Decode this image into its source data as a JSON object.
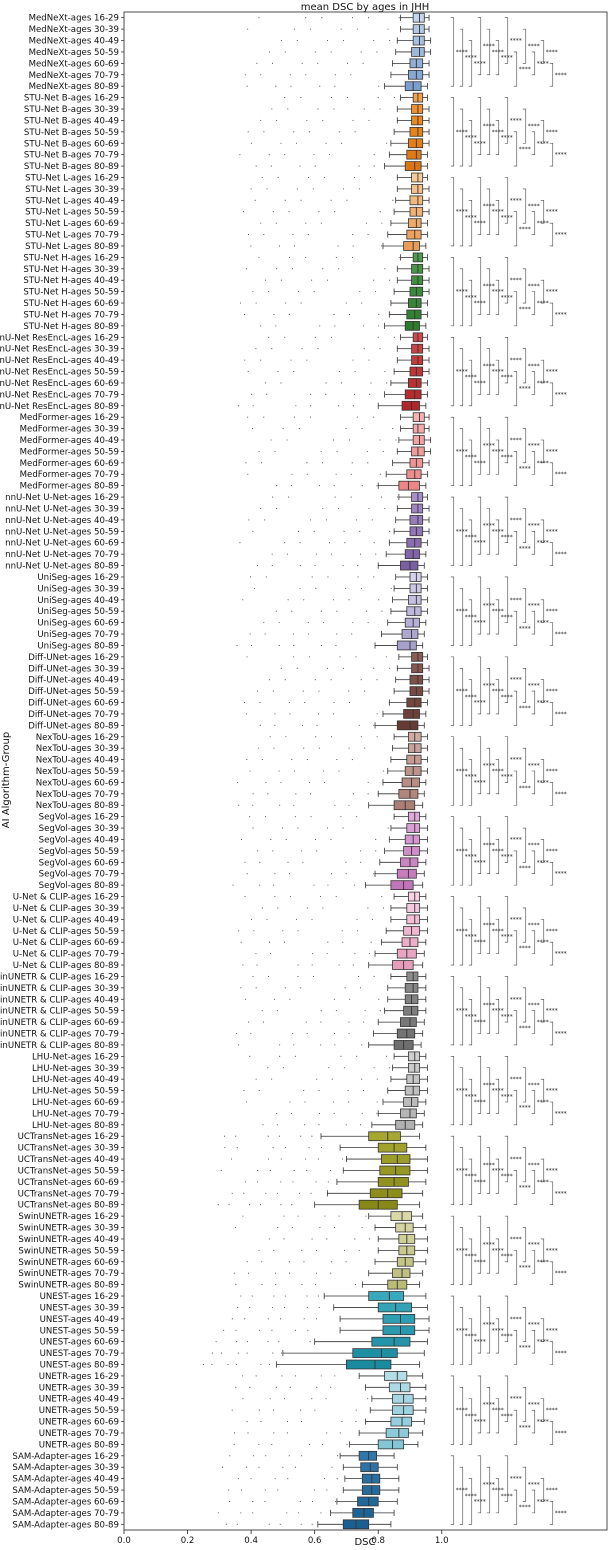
{
  "chart_data": {
    "type": "box",
    "orientation": "horizontal",
    "title": "mean DSC by ages in JHH",
    "xlabel": "DSC",
    "ylabel": "AI Algorithm-Group",
    "xlim": [
      0.0,
      1.0
    ],
    "xticks": [
      "0.0",
      "0.2",
      "0.4",
      "0.6",
      "0.8",
      "1.0"
    ],
    "age_groups": [
      "16-29",
      "30-39",
      "40-49",
      "50-59",
      "60-69",
      "70-79",
      "80-89"
    ],
    "significance_marker": "****",
    "algorithms": [
      {
        "name": "MedNeXt",
        "colors": [
          "#c6d6ec",
          "#b3c8e3",
          "#a8c0df",
          "#9db8db",
          "#92b0d6",
          "#87a8d2",
          "#7c9fcd"
        ],
        "median": [
          0.93,
          0.93,
          0.93,
          0.93,
          0.92,
          0.92,
          0.91
        ],
        "q1": [
          0.91,
          0.91,
          0.91,
          0.905,
          0.9,
          0.895,
          0.885
        ],
        "q3": [
          0.945,
          0.945,
          0.945,
          0.945,
          0.94,
          0.94,
          0.935
        ],
        "whisker_low": [
          0.87,
          0.87,
          0.86,
          0.855,
          0.845,
          0.84,
          0.82
        ],
        "whisker_high": [
          0.96,
          0.96,
          0.965,
          0.965,
          0.96,
          0.96,
          0.955
        ]
      },
      {
        "name": "STU-Net B",
        "colors": [
          "#f3a24e",
          "#ef8f2e",
          "#eb8a22",
          "#e8841c",
          "#e47f18",
          "#e07a14",
          "#dc7510"
        ],
        "median": [
          0.925,
          0.925,
          0.925,
          0.925,
          0.92,
          0.92,
          0.915
        ],
        "q1": [
          0.91,
          0.905,
          0.905,
          0.9,
          0.895,
          0.89,
          0.885
        ],
        "q3": [
          0.94,
          0.94,
          0.94,
          0.94,
          0.94,
          0.935,
          0.935
        ],
        "whisker_low": [
          0.87,
          0.86,
          0.86,
          0.85,
          0.84,
          0.835,
          0.82
        ],
        "whisker_high": [
          0.955,
          0.96,
          0.96,
          0.96,
          0.96,
          0.955,
          0.955
        ]
      },
      {
        "name": "STU-Net L",
        "colors": [
          "#f7cb97",
          "#f5c089",
          "#f3b87e",
          "#f1b174",
          "#efaa6a",
          "#eda260",
          "#eb9b56"
        ],
        "median": [
          0.925,
          0.925,
          0.925,
          0.92,
          0.92,
          0.915,
          0.91
        ],
        "q1": [
          0.905,
          0.905,
          0.9,
          0.9,
          0.895,
          0.89,
          0.88
        ],
        "q3": [
          0.94,
          0.94,
          0.94,
          0.94,
          0.935,
          0.935,
          0.93
        ],
        "whisker_low": [
          0.86,
          0.86,
          0.855,
          0.85,
          0.84,
          0.83,
          0.815
        ],
        "whisker_high": [
          0.955,
          0.96,
          0.96,
          0.96,
          0.955,
          0.955,
          0.95
        ]
      },
      {
        "name": "STU-Net H",
        "colors": [
          "#4f9a4f",
          "#489548",
          "#418f41",
          "#3c8a3c",
          "#378537",
          "#328032",
          "#2d7b2d"
        ],
        "median": [
          0.925,
          0.925,
          0.925,
          0.92,
          0.92,
          0.915,
          0.91
        ],
        "q1": [
          0.91,
          0.905,
          0.905,
          0.9,
          0.895,
          0.89,
          0.885
        ],
        "q3": [
          0.94,
          0.94,
          0.94,
          0.94,
          0.935,
          0.935,
          0.93
        ],
        "whisker_low": [
          0.87,
          0.86,
          0.86,
          0.85,
          0.84,
          0.835,
          0.82
        ],
        "whisker_high": [
          0.955,
          0.96,
          0.96,
          0.96,
          0.955,
          0.955,
          0.95
        ]
      },
      {
        "name": "nnU-Net ResEncL",
        "colors": [
          "#cf4a4d",
          "#c94245",
          "#c43b3e",
          "#bf3538",
          "#ba3033",
          "#b52b2e",
          "#b02629"
        ],
        "median": [
          0.925,
          0.925,
          0.925,
          0.92,
          0.92,
          0.915,
          0.905
        ],
        "q1": [
          0.91,
          0.905,
          0.905,
          0.9,
          0.895,
          0.885,
          0.875
        ],
        "q3": [
          0.94,
          0.94,
          0.94,
          0.94,
          0.935,
          0.935,
          0.93
        ],
        "whisker_low": [
          0.87,
          0.86,
          0.86,
          0.85,
          0.84,
          0.82,
          0.8
        ],
        "whisker_high": [
          0.955,
          0.96,
          0.96,
          0.96,
          0.955,
          0.955,
          0.95
        ]
      },
      {
        "name": "MedFormer",
        "colors": [
          "#f7b3b3",
          "#f5aaaa",
          "#f3a3a3",
          "#f19c9c",
          "#ef9595",
          "#ed8e8e",
          "#eb8787"
        ],
        "median": [
          0.93,
          0.925,
          0.93,
          0.925,
          0.92,
          0.915,
          0.895
        ],
        "q1": [
          0.91,
          0.91,
          0.91,
          0.905,
          0.9,
          0.89,
          0.865
        ],
        "q3": [
          0.945,
          0.945,
          0.945,
          0.945,
          0.94,
          0.935,
          0.93
        ],
        "whisker_low": [
          0.87,
          0.87,
          0.865,
          0.86,
          0.845,
          0.825,
          0.8
        ],
        "whisker_high": [
          0.96,
          0.96,
          0.965,
          0.965,
          0.96,
          0.955,
          0.95
        ]
      },
      {
        "name": "nnU-Net U-Net",
        "colors": [
          "#a78fc9",
          "#9f86c3",
          "#977dbd",
          "#9075b7",
          "#896db1",
          "#8266ab",
          "#7b5fa5"
        ],
        "median": [
          0.925,
          0.925,
          0.925,
          0.92,
          0.915,
          0.91,
          0.9
        ],
        "q1": [
          0.905,
          0.905,
          0.9,
          0.9,
          0.89,
          0.885,
          0.87
        ],
        "q3": [
          0.94,
          0.94,
          0.94,
          0.94,
          0.935,
          0.93,
          0.925
        ],
        "whisker_low": [
          0.865,
          0.86,
          0.855,
          0.85,
          0.835,
          0.825,
          0.8
        ],
        "whisker_high": [
          0.955,
          0.96,
          0.96,
          0.96,
          0.955,
          0.95,
          0.945
        ]
      },
      {
        "name": "UniSeg",
        "colors": [
          "#d6d1ea",
          "#cec8e5",
          "#c6c0e0",
          "#beb8db",
          "#b6b0d6",
          "#aea8d1",
          "#a6a0cc"
        ],
        "median": [
          0.92,
          0.92,
          0.92,
          0.915,
          0.91,
          0.905,
          0.9
        ],
        "q1": [
          0.9,
          0.9,
          0.895,
          0.89,
          0.885,
          0.875,
          0.86
        ],
        "q3": [
          0.935,
          0.935,
          0.935,
          0.935,
          0.93,
          0.925,
          0.92
        ],
        "whisker_low": [
          0.855,
          0.85,
          0.845,
          0.84,
          0.83,
          0.81,
          0.79
        ],
        "whisker_high": [
          0.955,
          0.955,
          0.955,
          0.955,
          0.95,
          0.945,
          0.94
        ]
      },
      {
        "name": "Diff-UNet",
        "colors": [
          "#8a5d56",
          "#84564f",
          "#7e5049",
          "#784a43",
          "#72453e",
          "#6c4039",
          "#663b34"
        ],
        "median": [
          0.925,
          0.925,
          0.925,
          0.92,
          0.915,
          0.91,
          0.9
        ],
        "q1": [
          0.905,
          0.905,
          0.9,
          0.9,
          0.89,
          0.88,
          0.86
        ],
        "q3": [
          0.94,
          0.94,
          0.94,
          0.94,
          0.935,
          0.93,
          0.925
        ],
        "whisker_low": [
          0.865,
          0.86,
          0.855,
          0.85,
          0.835,
          0.815,
          0.79
        ],
        "whisker_high": [
          0.955,
          0.96,
          0.96,
          0.96,
          0.955,
          0.95,
          0.945
        ]
      },
      {
        "name": "NexToU",
        "colors": [
          "#d0aba4",
          "#c9a39b",
          "#c39b93",
          "#bd948b",
          "#b78d84",
          "#b1867d",
          "#ab7f76"
        ],
        "median": [
          0.915,
          0.915,
          0.915,
          0.91,
          0.905,
          0.9,
          0.885
        ],
        "q1": [
          0.895,
          0.895,
          0.89,
          0.885,
          0.875,
          0.865,
          0.85
        ],
        "q3": [
          0.935,
          0.935,
          0.935,
          0.935,
          0.93,
          0.925,
          0.915
        ],
        "whisker_low": [
          0.85,
          0.845,
          0.84,
          0.83,
          0.815,
          0.8,
          0.77
        ],
        "whisker_high": [
          0.955,
          0.955,
          0.955,
          0.955,
          0.95,
          0.945,
          0.94
        ]
      },
      {
        "name": "SegVol",
        "colors": [
          "#e0a9dc",
          "#da9fd5",
          "#d596cf",
          "#d08dc9",
          "#cb85c3",
          "#c67cbd",
          "#c174b7"
        ],
        "median": [
          0.915,
          0.915,
          0.91,
          0.905,
          0.9,
          0.895,
          0.88
        ],
        "q1": [
          0.895,
          0.89,
          0.885,
          0.88,
          0.87,
          0.86,
          0.84
        ],
        "q3": [
          0.93,
          0.93,
          0.93,
          0.93,
          0.925,
          0.92,
          0.91
        ],
        "whisker_low": [
          0.85,
          0.84,
          0.835,
          0.82,
          0.805,
          0.79,
          0.76
        ],
        "whisker_high": [
          0.95,
          0.955,
          0.955,
          0.955,
          0.95,
          0.945,
          0.94
        ]
      },
      {
        "name": "U-Net & CLIP",
        "colors": [
          "#f8d2e4",
          "#f5c9dd",
          "#f2c0d6",
          "#efb7cf",
          "#ecaec8",
          "#e9a5c1",
          "#e69cba"
        ],
        "median": [
          0.915,
          0.915,
          0.915,
          0.905,
          0.9,
          0.89,
          0.88
        ],
        "q1": [
          0.895,
          0.89,
          0.89,
          0.88,
          0.875,
          0.86,
          0.845
        ],
        "q3": [
          0.93,
          0.93,
          0.93,
          0.93,
          0.925,
          0.92,
          0.91
        ],
        "whisker_low": [
          0.85,
          0.84,
          0.84,
          0.825,
          0.81,
          0.79,
          0.77
        ],
        "whisker_high": [
          0.95,
          0.955,
          0.955,
          0.955,
          0.95,
          0.945,
          0.94
        ]
      },
      {
        "name": "SwinUNETR & CLIP",
        "colors": [
          "#8c8c8c",
          "#878787",
          "#828282",
          "#7d7d7d",
          "#787878",
          "#737373",
          "#6e6e6e"
        ],
        "median": [
          0.91,
          0.91,
          0.905,
          0.905,
          0.9,
          0.89,
          0.88
        ],
        "q1": [
          0.89,
          0.885,
          0.885,
          0.88,
          0.87,
          0.86,
          0.85
        ],
        "q3": [
          0.925,
          0.925,
          0.925,
          0.925,
          0.92,
          0.915,
          0.91
        ],
        "whisker_low": [
          0.84,
          0.83,
          0.83,
          0.82,
          0.8,
          0.785,
          0.77
        ],
        "whisker_high": [
          0.95,
          0.95,
          0.95,
          0.95,
          0.945,
          0.94,
          0.935
        ]
      },
      {
        "name": "LHU-Net",
        "colors": [
          "#cfcfcf",
          "#cacaca",
          "#c5c5c5",
          "#c0c0c0",
          "#bbbbbb",
          "#b6b6b6",
          "#b1b1b1"
        ],
        "median": [
          0.915,
          0.915,
          0.91,
          0.91,
          0.905,
          0.9,
          0.885
        ],
        "q1": [
          0.895,
          0.895,
          0.89,
          0.885,
          0.88,
          0.87,
          0.855
        ],
        "q3": [
          0.93,
          0.93,
          0.93,
          0.93,
          0.925,
          0.92,
          0.915
        ],
        "whisker_low": [
          0.85,
          0.845,
          0.84,
          0.83,
          0.815,
          0.8,
          0.78
        ],
        "whisker_high": [
          0.95,
          0.955,
          0.955,
          0.955,
          0.95,
          0.945,
          0.94
        ]
      },
      {
        "name": "UCTransNet",
        "colors": [
          "#a6a630",
          "#a1a12c",
          "#9c9c28",
          "#979724",
          "#929220",
          "#8d8d1c",
          "#888818"
        ],
        "median": [
          0.83,
          0.85,
          0.86,
          0.855,
          0.85,
          0.83,
          0.8
        ],
        "q1": [
          0.77,
          0.8,
          0.81,
          0.805,
          0.8,
          0.775,
          0.74
        ],
        "q3": [
          0.87,
          0.89,
          0.9,
          0.9,
          0.895,
          0.875,
          0.86
        ],
        "whisker_low": [
          0.62,
          0.68,
          0.7,
          0.69,
          0.67,
          0.64,
          0.6
        ],
        "whisker_high": [
          0.93,
          0.95,
          0.955,
          0.955,
          0.95,
          0.94,
          0.93
        ]
      },
      {
        "name": "SwinUNETR",
        "colors": [
          "#d9d9a8",
          "#d4d4a0",
          "#cfcf98",
          "#caca90",
          "#c5c588",
          "#c0c080",
          "#bbbb78"
        ],
        "median": [
          0.875,
          0.885,
          0.89,
          0.89,
          0.885,
          0.875,
          0.86
        ],
        "q1": [
          0.84,
          0.855,
          0.865,
          0.865,
          0.86,
          0.845,
          0.83
        ],
        "q3": [
          0.905,
          0.91,
          0.915,
          0.915,
          0.91,
          0.9,
          0.89
        ],
        "whisker_low": [
          0.77,
          0.79,
          0.8,
          0.8,
          0.79,
          0.77,
          0.75
        ],
        "whisker_high": [
          0.94,
          0.95,
          0.955,
          0.955,
          0.95,
          0.94,
          0.93
        ]
      },
      {
        "name": "UNEST",
        "colors": [
          "#38a8bd",
          "#33a3b8",
          "#2e9eb3",
          "#2999ae",
          "#2494a9",
          "#1f8fa4",
          "#1a8a9f"
        ],
        "median": [
          0.835,
          0.855,
          0.87,
          0.87,
          0.85,
          0.81,
          0.79
        ],
        "q1": [
          0.77,
          0.8,
          0.815,
          0.815,
          0.78,
          0.72,
          0.7
        ],
        "q3": [
          0.88,
          0.905,
          0.915,
          0.915,
          0.9,
          0.86,
          0.84
        ],
        "whisker_low": [
          0.63,
          0.66,
          0.68,
          0.68,
          0.6,
          0.5,
          0.48
        ],
        "whisker_high": [
          0.95,
          0.955,
          0.96,
          0.96,
          0.955,
          0.945,
          0.93
        ]
      },
      {
        "name": "UNETR",
        "colors": [
          "#b5dde8",
          "#addae5",
          "#a5d6e2",
          "#9dd2df",
          "#95cedc",
          "#8dcad9",
          "#85c6d6"
        ],
        "median": [
          0.86,
          0.87,
          0.88,
          0.88,
          0.875,
          0.865,
          0.845
        ],
        "q1": [
          0.82,
          0.835,
          0.845,
          0.845,
          0.84,
          0.825,
          0.8
        ],
        "q3": [
          0.89,
          0.9,
          0.91,
          0.91,
          0.905,
          0.895,
          0.88
        ],
        "whisker_low": [
          0.74,
          0.76,
          0.78,
          0.775,
          0.76,
          0.74,
          0.71
        ],
        "whisker_high": [
          0.94,
          0.95,
          0.95,
          0.95,
          0.945,
          0.94,
          0.925
        ]
      },
      {
        "name": "SAM-Adapter",
        "colors": [
          "#3277a9",
          "#2e73a5",
          "#2a6fa1",
          "#266b9d",
          "#226799",
          "#1e6395",
          "#1a5f91"
        ],
        "median": [
          0.77,
          0.775,
          0.78,
          0.78,
          0.77,
          0.755,
          0.73
        ],
        "q1": [
          0.74,
          0.745,
          0.75,
          0.75,
          0.735,
          0.72,
          0.69
        ],
        "q3": [
          0.795,
          0.8,
          0.805,
          0.805,
          0.8,
          0.785,
          0.77
        ],
        "whisker_low": [
          0.68,
          0.69,
          0.695,
          0.69,
          0.67,
          0.65,
          0.61
        ],
        "whisker_high": [
          0.85,
          0.86,
          0.865,
          0.865,
          0.86,
          0.85,
          0.84
        ]
      }
    ]
  }
}
